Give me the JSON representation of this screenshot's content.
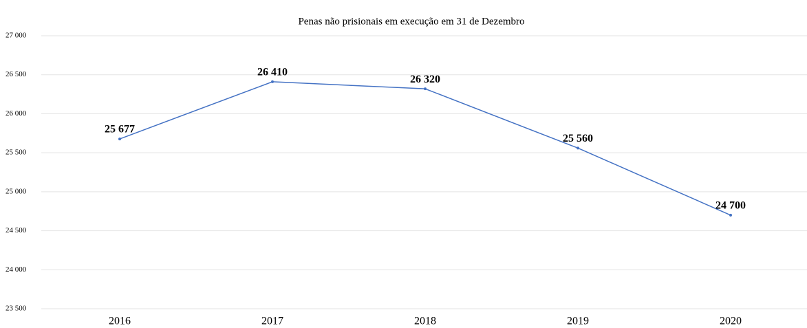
{
  "chart_data": {
    "type": "line",
    "title": "Penas não prisionais em execução em 31 de Dezembro",
    "categories": [
      "2016",
      "2017",
      "2018",
      "2019",
      "2020"
    ],
    "series": [
      {
        "color": "#4472c4",
        "values": [
          25677,
          26410,
          26320,
          25560,
          24700
        ],
        "value_labels": [
          "25 677",
          "26 410",
          "26 320",
          "25 560",
          "24 700"
        ]
      }
    ],
    "ylim": [
      23500,
      27000
    ],
    "yticks": [
      {
        "value": 23500,
        "label": "23 500"
      },
      {
        "value": 24000,
        "label": "24 000"
      },
      {
        "value": 24500,
        "label": "24 500"
      },
      {
        "value": 25000,
        "label": "25 000"
      },
      {
        "value": 25500,
        "label": "25 500"
      },
      {
        "value": 26000,
        "label": "26 000"
      },
      {
        "value": 26500,
        "label": "26 500"
      },
      {
        "value": 27000,
        "label": "27 000"
      }
    ],
    "grid": true
  }
}
